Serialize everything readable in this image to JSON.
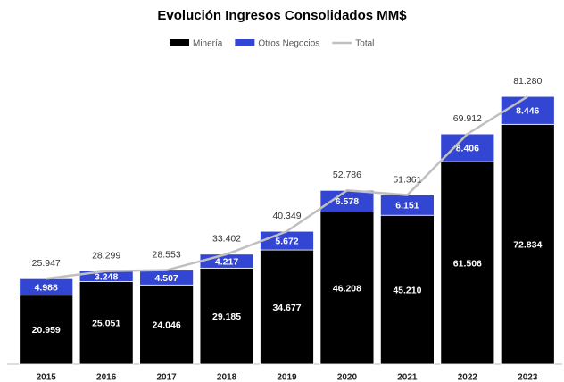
{
  "chart_data": {
    "type": "stacked_bar_line",
    "title": "Evolución Ingresos Consolidados MM$",
    "categories": [
      "2015",
      "2016",
      "2017",
      "2018",
      "2019",
      "2020",
      "2021",
      "2022",
      "2023"
    ],
    "series": [
      {
        "name": "Minería",
        "color": "#000000",
        "values": [
          20959,
          25051,
          24046,
          29185,
          34677,
          46208,
          45210,
          61506,
          72834
        ],
        "value_labels": [
          "20.959",
          "25.051",
          "24.046",
          "29.185",
          "34.677",
          "46.208",
          "45.210",
          "61.506",
          "72.834"
        ]
      },
      {
        "name": "Otros Negocios",
        "color": "#3346d3",
        "values": [
          4988,
          3248,
          4507,
          4217,
          5672,
          6578,
          6151,
          8406,
          8446
        ],
        "value_labels": [
          "4.988",
          "3.248",
          "4.507",
          "4.217",
          "5.672",
          "6.578",
          "6.151",
          "8.406",
          "8.446"
        ]
      },
      {
        "name": "Total",
        "color": "#c0c0c0",
        "type": "line",
        "values": [
          25947,
          28299,
          28553,
          33402,
          40349,
          52786,
          51361,
          69912,
          81280
        ],
        "value_labels": [
          "25.947",
          "28.299",
          "28.553",
          "33.402",
          "40.349",
          "52.786",
          "51.361",
          "69.912",
          "81.280"
        ]
      }
    ],
    "ylim": [
      0,
      90000
    ]
  }
}
